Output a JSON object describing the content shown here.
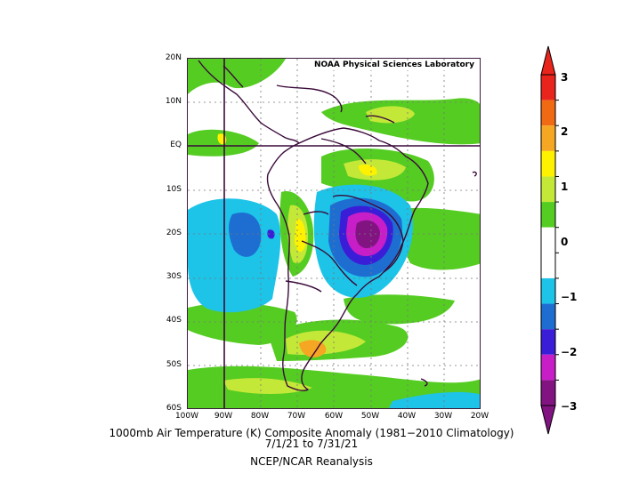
{
  "map": {
    "credit": "NOAA Physical Sciences Laboratory",
    "lat_labels": [
      "20N",
      "10N",
      "EQ",
      "10S",
      "20S",
      "30S",
      "40S",
      "50S",
      "60S"
    ],
    "lon_labels": [
      "100W",
      "90W",
      "80W",
      "70W",
      "60W",
      "50W",
      "40W",
      "30W",
      "20W"
    ]
  },
  "caption": {
    "line1": "1000mb Air Temperature (K) Composite Anomaly (1981−2010 Climatology)",
    "line2": "7/1/21  to 7/31/21",
    "line3": "NCEP/NCAR Reanalysis"
  },
  "colorbar": {
    "labels": [
      "3",
      "2",
      "1",
      "0",
      "−1",
      "−2",
      "−3"
    ],
    "colors": [
      "#e8241c",
      "#f06a14",
      "#f5a623",
      "#fff200",
      "#c4e838",
      "#55cc22",
      "#ffffff",
      "#ffffff",
      "#1ec3e8",
      "#1e6ed2",
      "#3a1ed7",
      "#c81ec8",
      "#821482"
    ]
  },
  "colors": {
    "green": "#55cc22",
    "lightgreen": "#c4e838",
    "yellow": "#fff200",
    "orange": "#f5a623",
    "cyan": "#1ec3e8",
    "blue": "#1e6ed2",
    "indigo": "#3a1ed7",
    "magenta": "#c81ec8",
    "purple": "#821482",
    "coast": "#3a0a3a"
  }
}
